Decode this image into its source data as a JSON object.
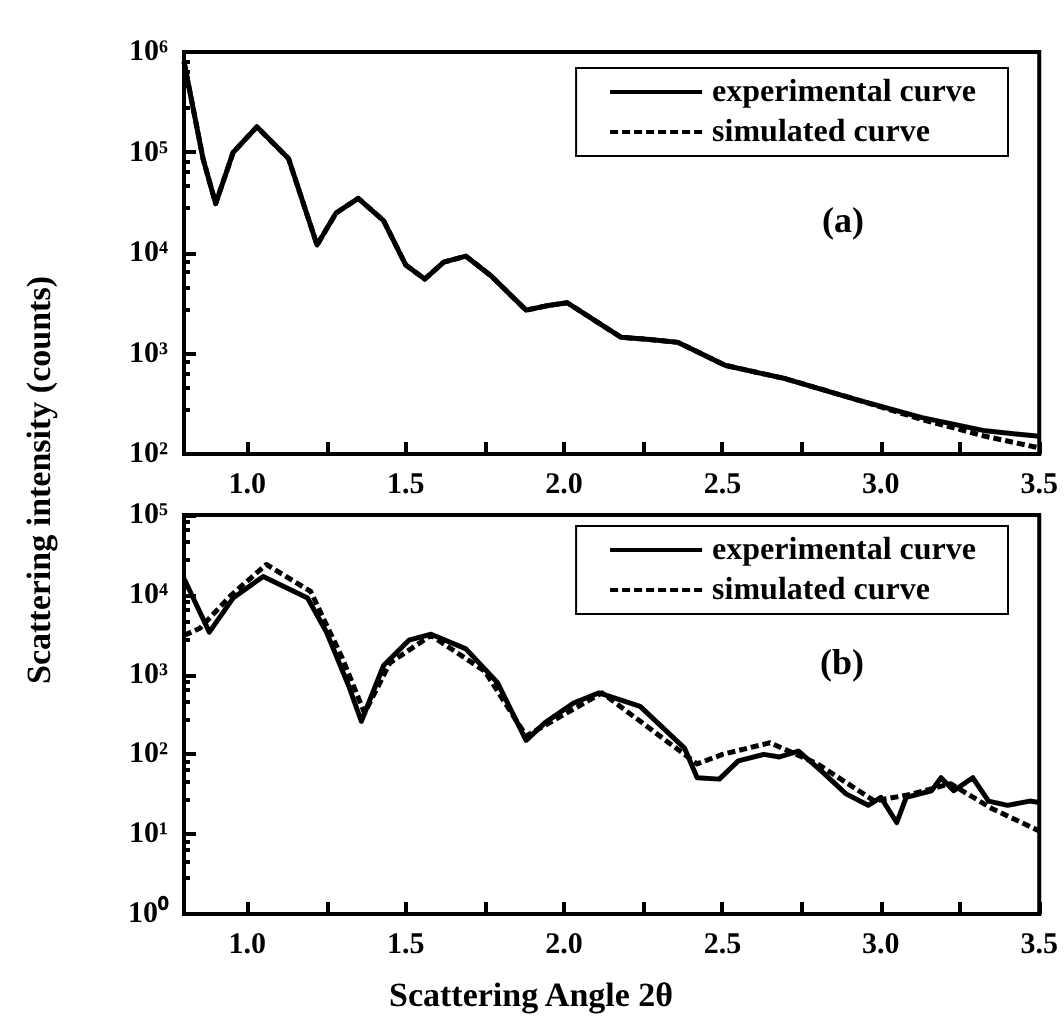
{
  "chart_data": [
    {
      "type": "line",
      "ylabel": "Scattering intensity (counts)",
      "annotations": [
        "(a)"
      ],
      "log": true,
      "legend": "top right",
      "xlim": [
        0.8,
        3.5
      ],
      "xticks": [
        {
          "value": 1,
          "label": "1.0"
        },
        {
          "value": 1.25,
          "label": null
        },
        {
          "value": 1.5,
          "label": "1.5"
        },
        {
          "value": 1.75,
          "label": null
        },
        {
          "value": 2,
          "label": "2.0"
        },
        {
          "value": 2.25,
          "label": null
        },
        {
          "value": 2.5,
          "label": "2.5"
        },
        {
          "value": 2.75,
          "label": null
        },
        {
          "value": 3,
          "label": "3.0"
        },
        {
          "value": 3.25,
          "label": null
        },
        {
          "value": 3.5,
          "label": "3.5"
        }
      ],
      "ylim": [
        100,
        1000000
      ],
      "yticks": [
        {
          "value": 100,
          "label": "10²"
        },
        {
          "value": 1000,
          "label": "10³"
        },
        {
          "value": 10000,
          "label": "10⁴"
        },
        {
          "value": 100000,
          "label": "10⁵"
        },
        {
          "value": 1000000,
          "label": "10⁶"
        }
      ],
      "series": [
        {
          "name": "experimental curve",
          "color": "#000000",
          "line_style": "solid",
          "x": [
            0.8,
            0.86,
            0.9,
            0.955,
            1.03,
            1.13,
            1.18,
            1.22,
            1.28,
            1.35,
            1.43,
            1.5,
            1.56,
            1.62,
            1.69,
            1.77,
            1.88,
            1.95,
            2.01,
            2.1,
            2.18,
            2.27,
            2.36,
            2.51,
            2.7,
            2.92,
            3.13,
            3.33,
            3.5
          ],
          "values": [
            800000,
            87000,
            31000,
            100000,
            180000,
            87000,
            29000,
            12000,
            25000,
            35000,
            21000,
            7600,
            5500,
            8100,
            9300,
            5900,
            2700,
            3000,
            3200,
            2100,
            1450,
            1380,
            1290,
            760,
            560,
            350,
            230,
            170,
            150
          ]
        },
        {
          "name": "simulated curve",
          "color": "#000000",
          "line_style": "dashed",
          "x": [
            0.8,
            0.86,
            0.9,
            0.955,
            1.03,
            1.13,
            1.18,
            1.22,
            1.28,
            1.35,
            1.43,
            1.5,
            1.56,
            1.62,
            1.69,
            1.77,
            1.88,
            1.95,
            2.01,
            2.1,
            2.18,
            2.27,
            2.36,
            2.51,
            2.7,
            2.92,
            3.13,
            3.33,
            3.5
          ],
          "values": [
            800000,
            87000,
            31000,
            100000,
            180000,
            87000,
            29000,
            12000,
            25000,
            35000,
            21000,
            7600,
            5500,
            8100,
            9300,
            5900,
            2700,
            3000,
            3200,
            2100,
            1450,
            1380,
            1290,
            760,
            560,
            350,
            220,
            150,
            115
          ]
        }
      ]
    },
    {
      "type": "line",
      "xlabel": "Scattering Angle 2θ",
      "annotations": [
        "(b)"
      ],
      "log": true,
      "legend": "top right",
      "xlim": [
        0.8,
        3.5
      ],
      "xticks": [
        {
          "value": 1,
          "label": "1.0"
        },
        {
          "value": 1.25,
          "label": null
        },
        {
          "value": 1.5,
          "label": "1.5"
        },
        {
          "value": 1.75,
          "label": null
        },
        {
          "value": 2,
          "label": "2.0"
        },
        {
          "value": 2.25,
          "label": null
        },
        {
          "value": 2.5,
          "label": "2.5"
        },
        {
          "value": 2.75,
          "label": null
        },
        {
          "value": 3,
          "label": "3.0"
        },
        {
          "value": 3.25,
          "label": null
        },
        {
          "value": 3.5,
          "label": "3.5"
        }
      ],
      "ylim": [
        1,
        100000
      ],
      "yticks": [
        {
          "value": 1,
          "label": "10⁰"
        },
        {
          "value": 10,
          "label": "10¹"
        },
        {
          "value": 100,
          "label": "10²"
        },
        {
          "value": 1000,
          "label": "10³"
        },
        {
          "value": 10000,
          "label": "10⁴"
        },
        {
          "value": 100000,
          "label": "10⁵"
        }
      ],
      "series": [
        {
          "name": "experimental curve",
          "color": "#000000",
          "line_style": "solid",
          "x": [
            0.8,
            0.88,
            0.955,
            1.05,
            1.19,
            1.25,
            1.32,
            1.36,
            1.43,
            1.51,
            1.58,
            1.69,
            1.79,
            1.88,
            1.94,
            2.03,
            2.11,
            2.24,
            2.38,
            2.42,
            2.49,
            2.55,
            2.63,
            2.68,
            2.74,
            2.81,
            2.89,
            2.96,
            3.0,
            3.05,
            3.08,
            3.16,
            3.19,
            3.23,
            3.29,
            3.34,
            3.4,
            3.47,
            3.5
          ],
          "values": [
            16000,
            3400,
            9100,
            17000,
            9100,
            3400,
            720,
            260,
            1300,
            2700,
            3200,
            2100,
            790,
            150,
            250,
            440,
            590,
            400,
            120,
            51,
            49,
            83,
            100,
            93,
            110,
            63,
            32,
            23,
            29,
            14,
            29,
            35,
            51,
            35,
            51,
            26,
            23,
            26,
            25
          ]
        },
        {
          "name": "simulated curve",
          "color": "#000000",
          "line_style": "dashed",
          "x": [
            0.8,
            0.85,
            0.95,
            1.06,
            1.2,
            1.3,
            1.37,
            1.45,
            1.58,
            1.75,
            1.88,
            2.12,
            2.42,
            2.5,
            2.65,
            2.8,
            2.98,
            3.1,
            3.22,
            3.35,
            3.5
          ],
          "values": [
            3100,
            3800,
            10000,
            24000,
            11000,
            1600,
            330,
            1400,
            3100,
            1100,
            170,
            590,
            76,
            100,
            140,
            76,
            26,
            32,
            43,
            21,
            11
          ]
        }
      ]
    }
  ]
}
